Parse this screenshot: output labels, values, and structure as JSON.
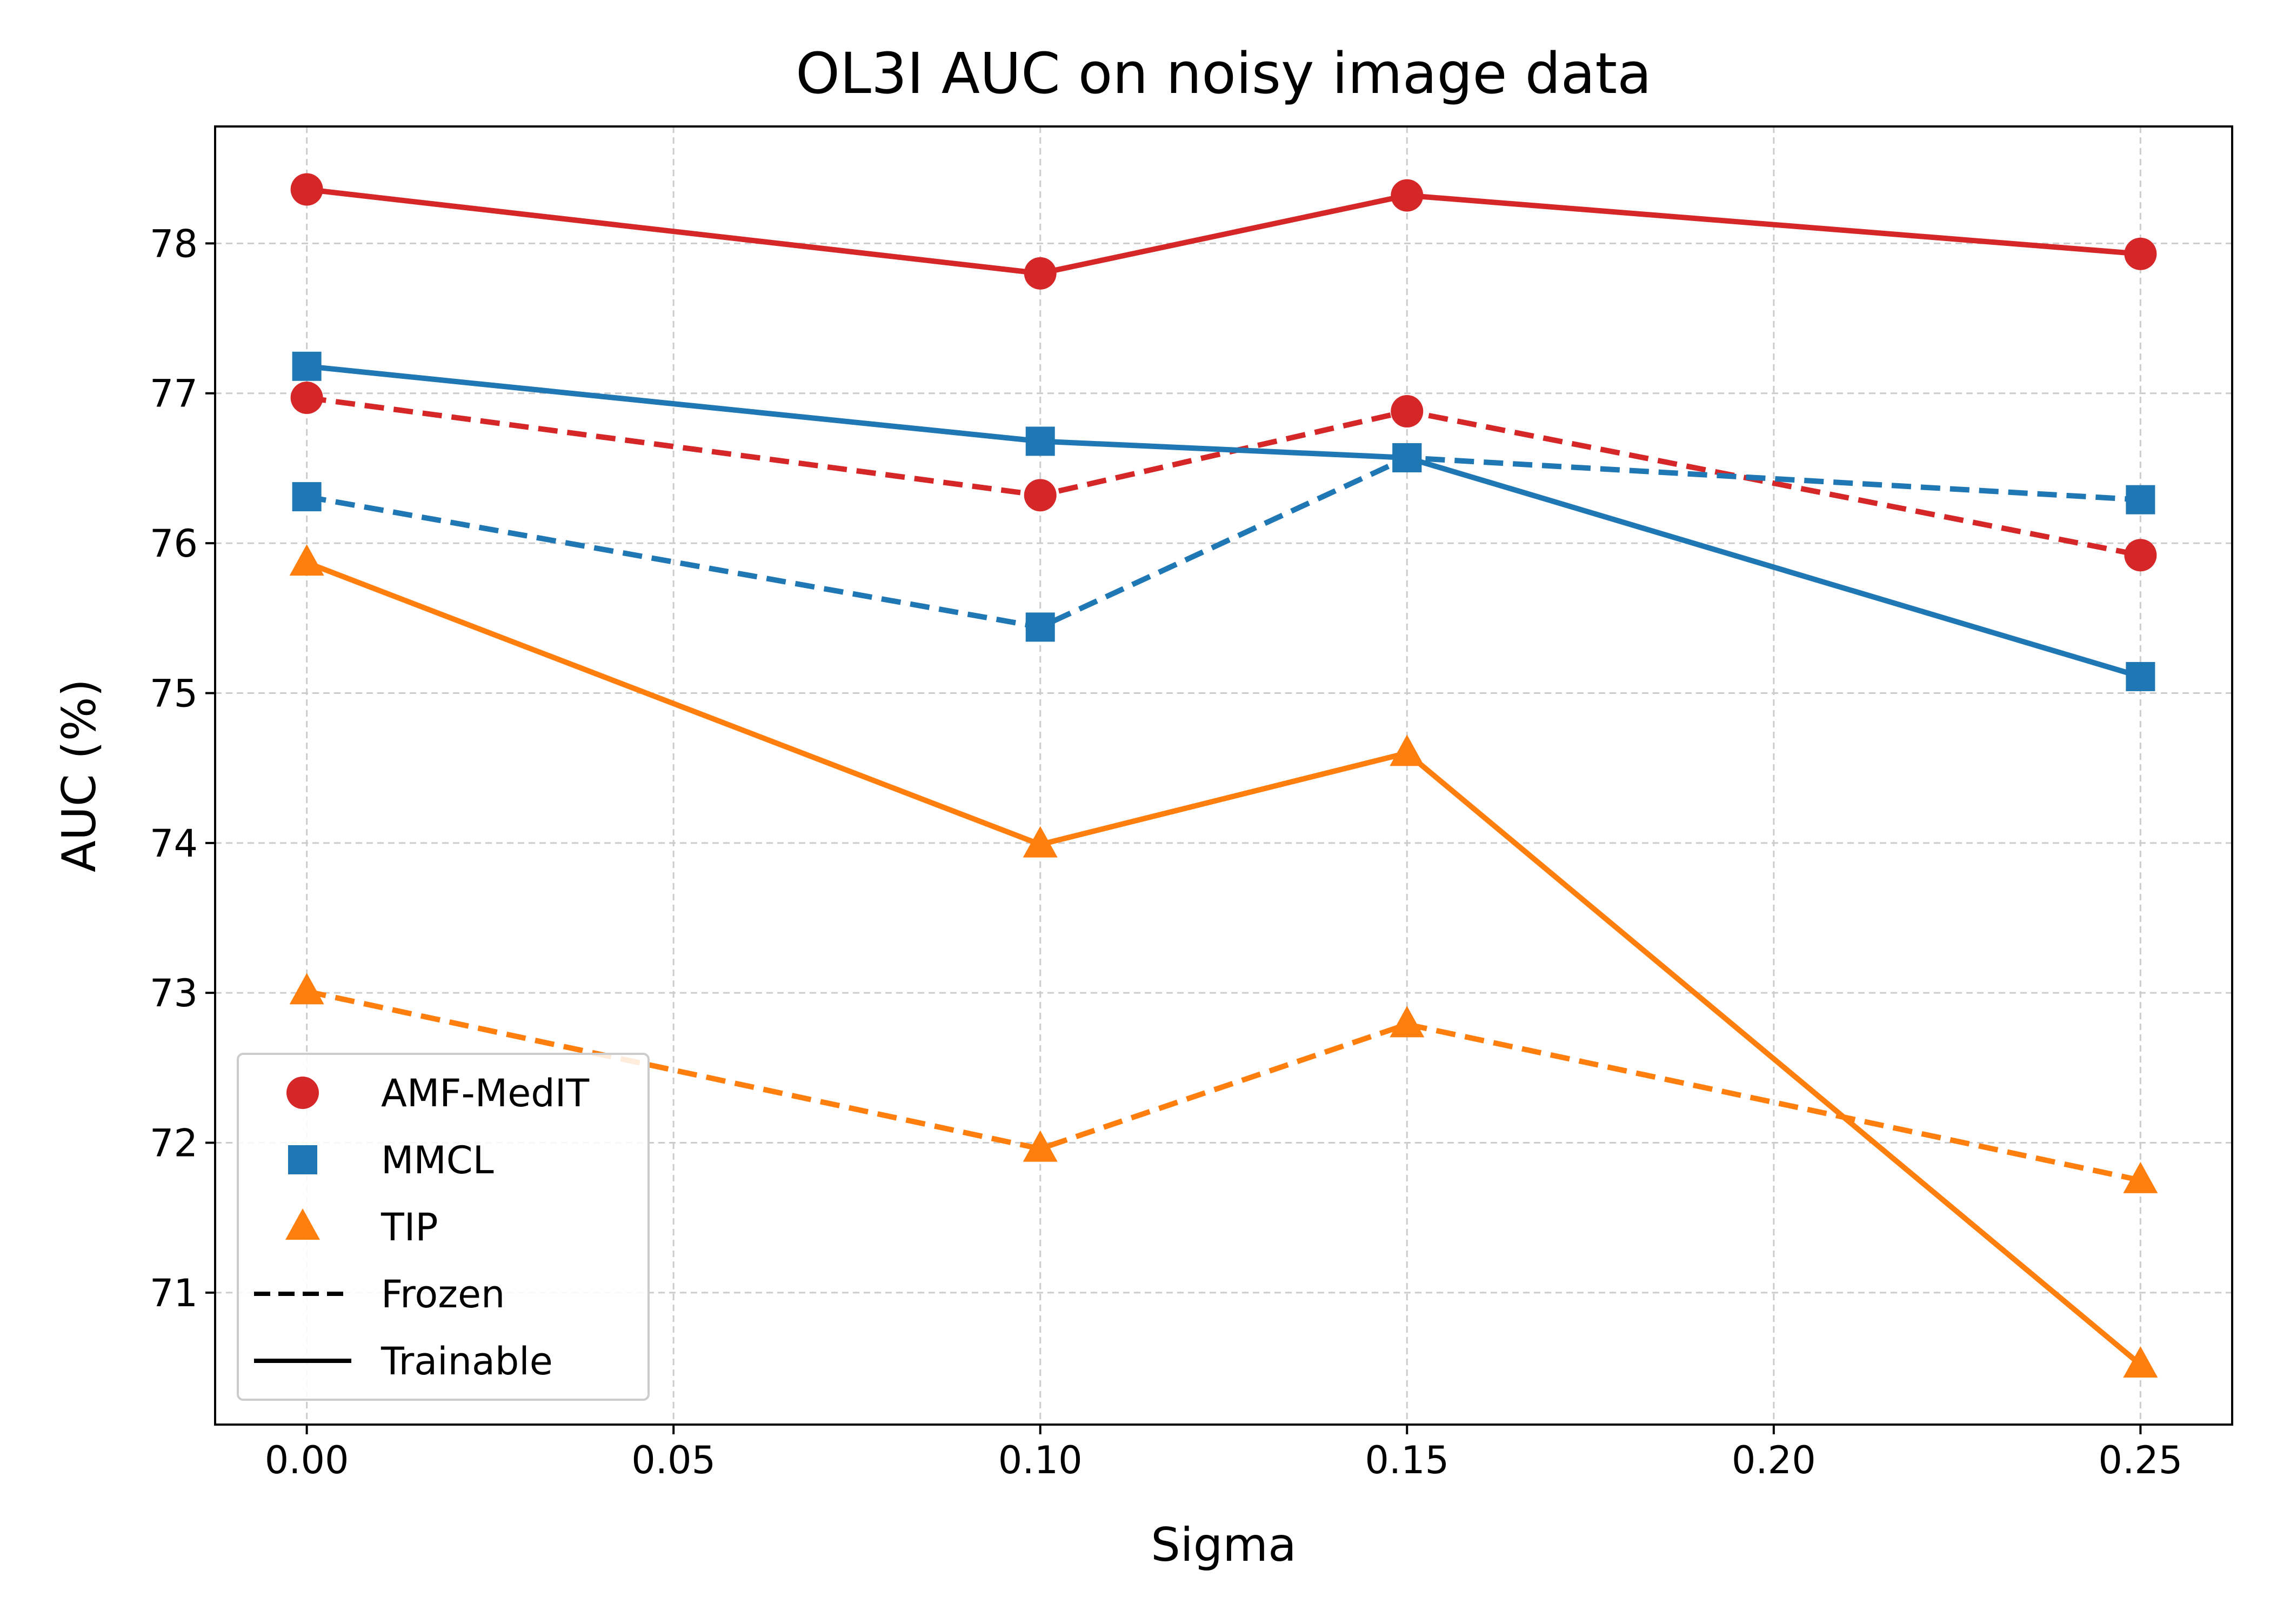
{
  "chart_data": {
    "type": "line",
    "title": "OL3I AUC on noisy image data",
    "xlabel": "Sigma",
    "ylabel": "AUC (%)",
    "xlim": [
      -0.0125,
      0.2625
    ],
    "ylim": [
      70.12,
      78.78
    ],
    "xticks": [
      0.0,
      0.05,
      0.1,
      0.15,
      0.2,
      0.25
    ],
    "xtick_labels": [
      "0.00",
      "0.05",
      "0.10",
      "0.15",
      "0.20",
      "0.25"
    ],
    "yticks": [
      71,
      72,
      73,
      74,
      75,
      76,
      77,
      78
    ],
    "ytick_labels": [
      "71",
      "72",
      "73",
      "74",
      "75",
      "76",
      "77",
      "78"
    ],
    "grid": true,
    "x": [
      0.0,
      0.1,
      0.15,
      0.25
    ],
    "series": [
      {
        "name": "AMF-MedIT",
        "mode": "Trainable",
        "marker": "circle",
        "color": "#d62728",
        "dashed": false,
        "values": [
          78.36,
          77.8,
          78.32,
          77.93
        ]
      },
      {
        "name": "AMF-MedIT",
        "mode": "Frozen",
        "marker": "circle",
        "color": "#d62728",
        "dashed": true,
        "values": [
          76.97,
          76.32,
          76.88,
          75.92
        ]
      },
      {
        "name": "MMCL",
        "mode": "Trainable",
        "marker": "square",
        "color": "#1f77b4",
        "dashed": false,
        "values": [
          77.18,
          76.68,
          76.57,
          75.11
        ]
      },
      {
        "name": "MMCL",
        "mode": "Frozen",
        "marker": "square",
        "color": "#1f77b4",
        "dashed": true,
        "values": [
          76.31,
          75.44,
          76.57,
          76.29
        ]
      },
      {
        "name": "TIP",
        "mode": "Trainable",
        "marker": "triangle",
        "color": "#ff7f0e",
        "dashed": false,
        "values": [
          75.87,
          73.99,
          74.6,
          70.52
        ]
      },
      {
        "name": "TIP",
        "mode": "Frozen",
        "marker": "triangle",
        "color": "#ff7f0e",
        "dashed": true,
        "values": [
          73.01,
          71.96,
          72.79,
          71.75
        ]
      }
    ],
    "legend": {
      "placement": "lower-left",
      "entries": [
        {
          "label": "AMF-MedIT",
          "kind": "circle",
          "color": "#d62728"
        },
        {
          "label": "MMCL",
          "kind": "square",
          "color": "#1f77b4"
        },
        {
          "label": "TIP",
          "kind": "triangle",
          "color": "#ff7f0e"
        },
        {
          "label": "Frozen",
          "kind": "dashed-line",
          "color": "#000000"
        },
        {
          "label": "Trainable",
          "kind": "solid-line",
          "color": "#000000"
        }
      ]
    }
  }
}
